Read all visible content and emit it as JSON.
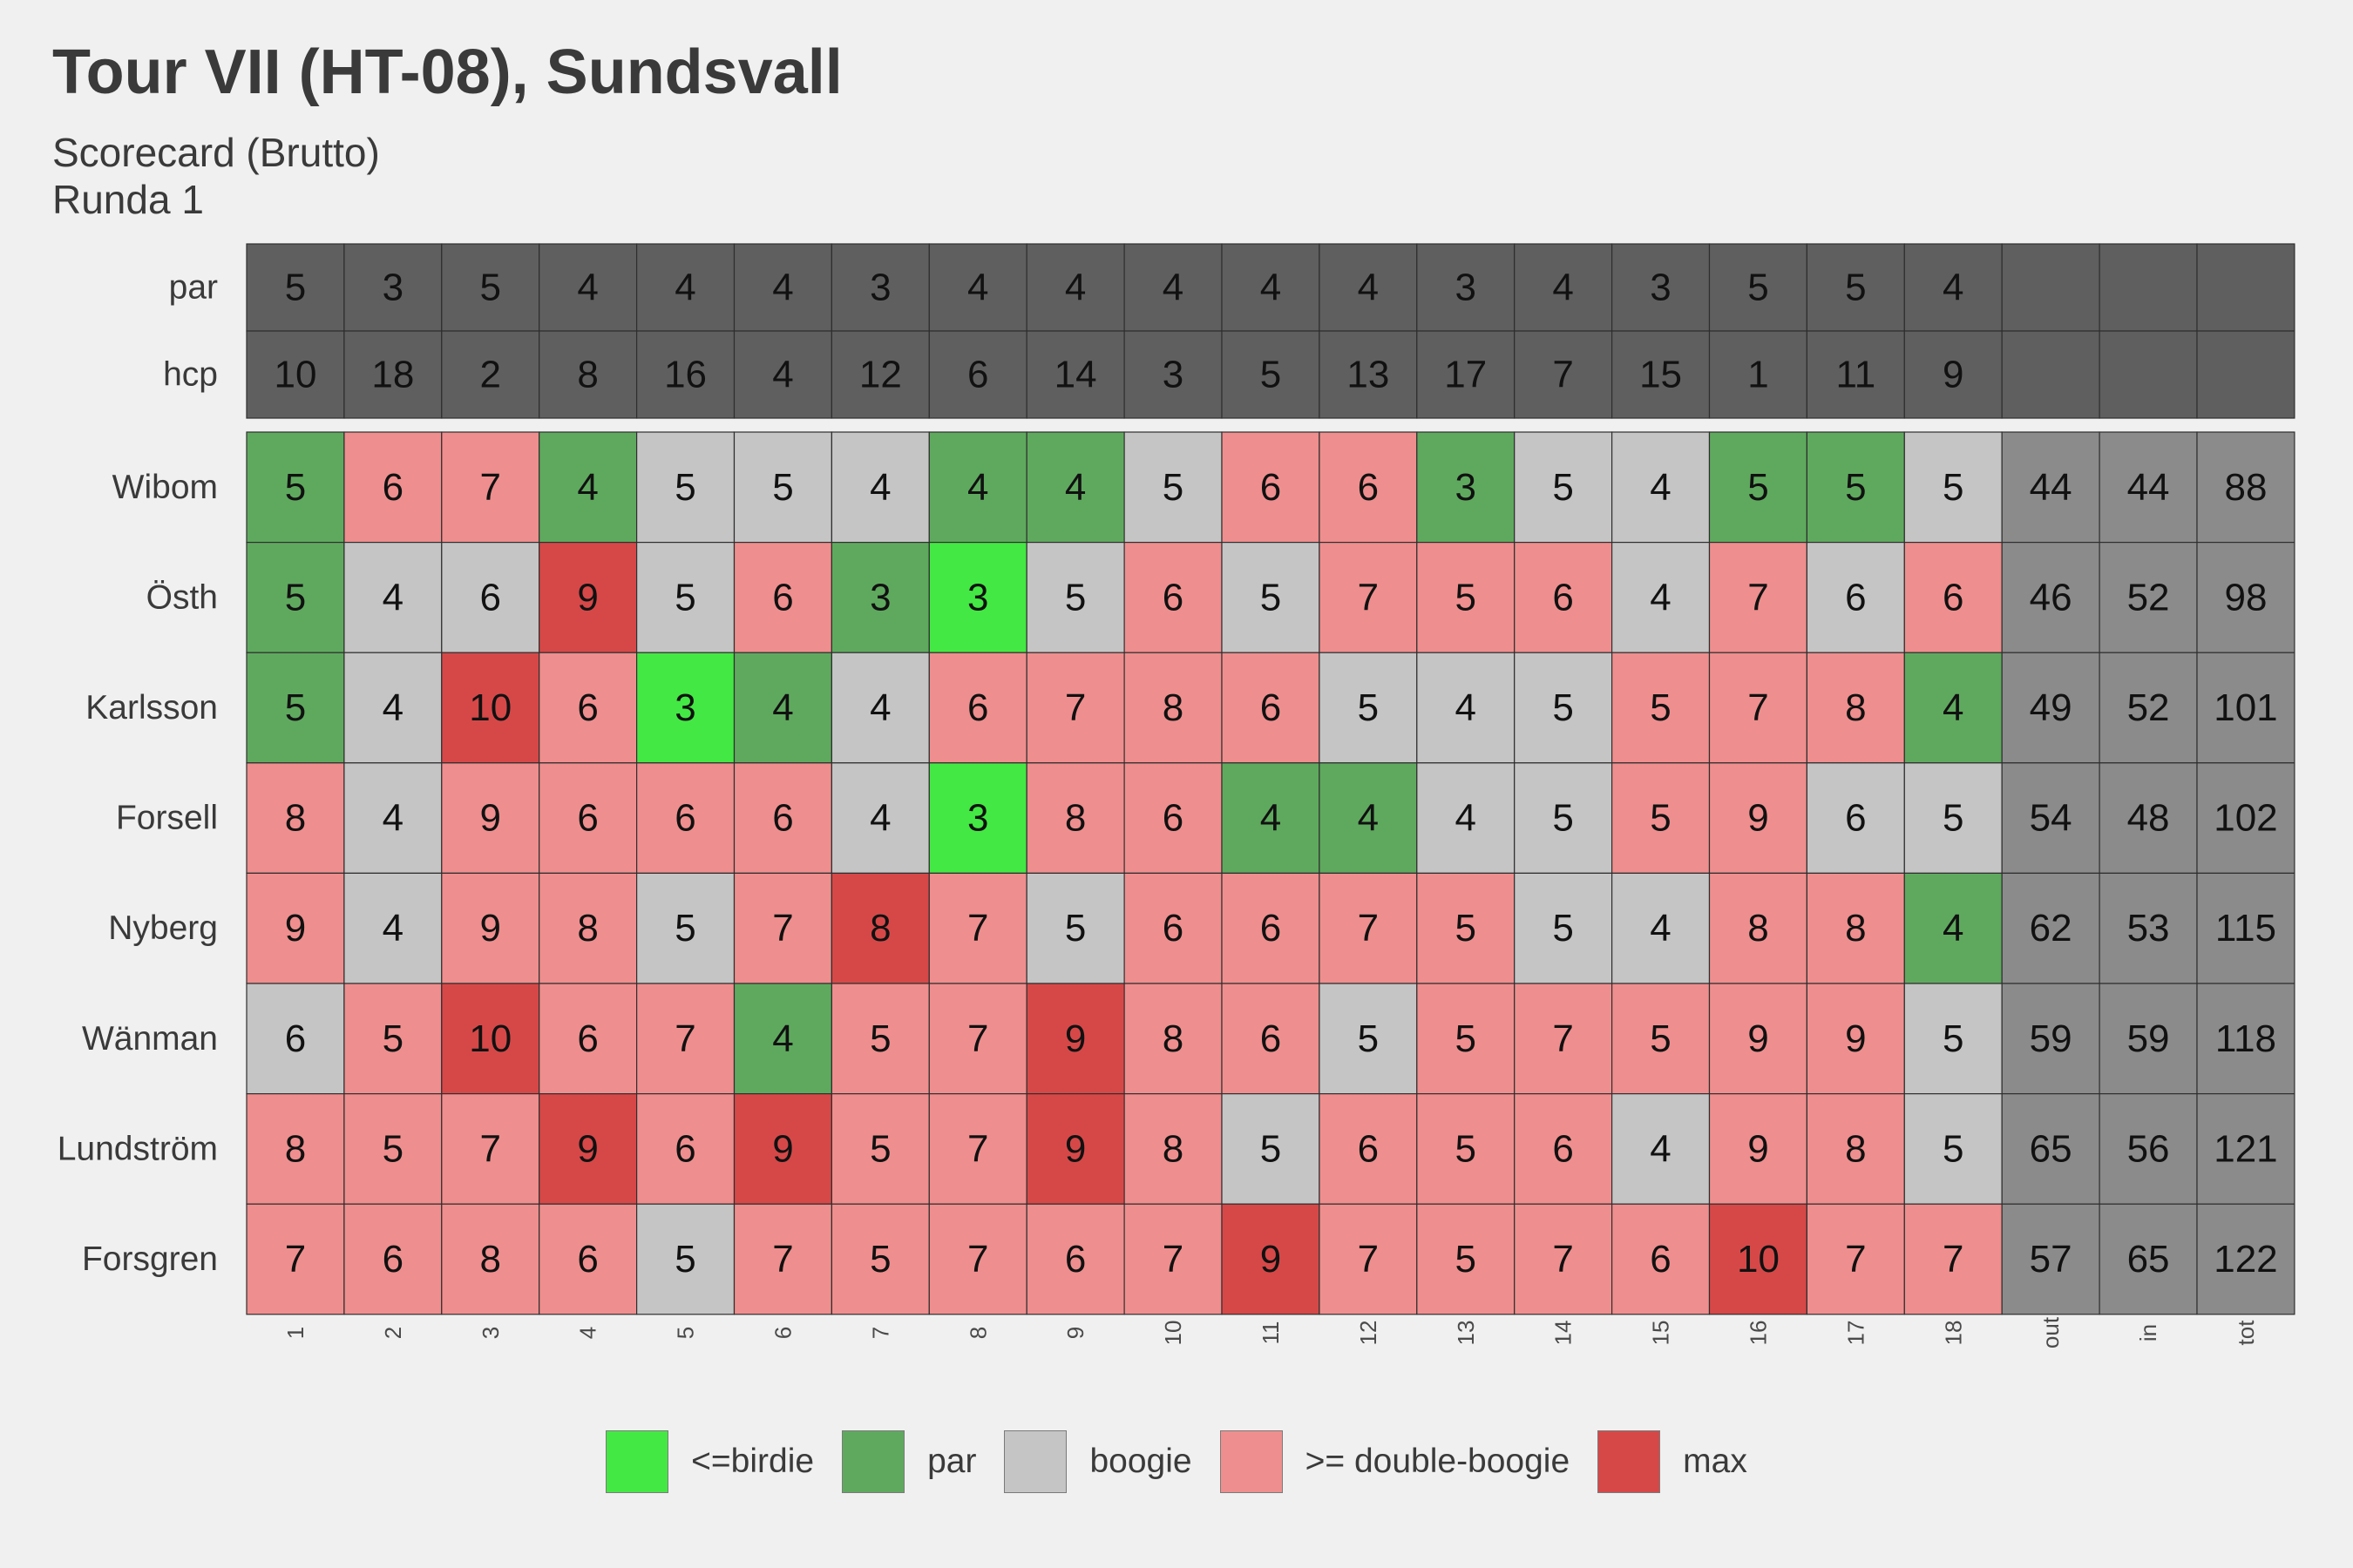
{
  "title": "Tour VII (HT-08), Sundsvall",
  "subtitle_line1": "Scorecard (Brutto)",
  "subtitle_line2": "Runda 1",
  "colors": {
    "background": "#f0f0f0",
    "header": "#5f5f5f",
    "totals": "#8b8b8b",
    "birdie": "#44e844",
    "par": "#5fa95f",
    "bogie": "#c5c5c5",
    "double_bogie": "#ef8e8e",
    "max": "#d64848"
  },
  "chart_data": {
    "type": "heatmap",
    "title": "Tour VII (HT-08), Sundsvall",
    "subtitle": "Scorecard (Brutto) Runda 1",
    "columns": [
      "1",
      "2",
      "3",
      "4",
      "5",
      "6",
      "7",
      "8",
      "9",
      "10",
      "11",
      "12",
      "13",
      "14",
      "15",
      "16",
      "17",
      "18",
      "out",
      "in",
      "tot"
    ],
    "header_rows": [
      {
        "label": "par",
        "values": [
          5,
          3,
          5,
          4,
          4,
          4,
          3,
          4,
          4,
          4,
          4,
          4,
          3,
          4,
          3,
          5,
          5,
          4,
          "",
          "",
          ""
        ]
      },
      {
        "label": "hcp",
        "values": [
          10,
          18,
          2,
          8,
          16,
          4,
          12,
          6,
          14,
          3,
          5,
          13,
          17,
          7,
          15,
          1,
          11,
          9,
          "",
          "",
          ""
        ]
      }
    ],
    "players": [
      {
        "name": "Wibom",
        "scores": [
          5,
          6,
          7,
          4,
          5,
          5,
          4,
          4,
          4,
          5,
          6,
          6,
          3,
          5,
          4,
          5,
          5,
          5
        ],
        "out": 44,
        "in": 44,
        "tot": 88
      },
      {
        "name": "Östh",
        "scores": [
          5,
          4,
          6,
          9,
          5,
          6,
          3,
          3,
          5,
          6,
          5,
          7,
          5,
          6,
          4,
          7,
          6,
          6
        ],
        "out": 46,
        "in": 52,
        "tot": 98
      },
      {
        "name": "Karlsson",
        "scores": [
          5,
          4,
          10,
          6,
          3,
          4,
          4,
          6,
          7,
          8,
          6,
          5,
          4,
          5,
          5,
          7,
          8,
          4
        ],
        "out": 49,
        "in": 52,
        "tot": 101
      },
      {
        "name": "Forsell",
        "scores": [
          8,
          4,
          9,
          6,
          6,
          6,
          4,
          3,
          8,
          6,
          4,
          4,
          4,
          5,
          5,
          9,
          6,
          5
        ],
        "out": 54,
        "in": 48,
        "tot": 102
      },
      {
        "name": "Nyberg",
        "scores": [
          9,
          4,
          9,
          8,
          5,
          7,
          8,
          7,
          5,
          6,
          6,
          7,
          5,
          5,
          4,
          8,
          8,
          4
        ],
        "out": 62,
        "in": 53,
        "tot": 115
      },
      {
        "name": "Wänman",
        "scores": [
          6,
          5,
          10,
          6,
          7,
          4,
          5,
          7,
          9,
          8,
          6,
          5,
          5,
          7,
          5,
          9,
          9,
          5
        ],
        "out": 59,
        "in": 59,
        "tot": 118
      },
      {
        "name": "Lundström",
        "scores": [
          8,
          5,
          7,
          9,
          6,
          9,
          5,
          7,
          9,
          8,
          5,
          6,
          5,
          6,
          4,
          9,
          8,
          5
        ],
        "out": 65,
        "in": 56,
        "tot": 121
      },
      {
        "name": "Forsgren",
        "scores": [
          7,
          6,
          8,
          6,
          5,
          7,
          5,
          7,
          6,
          7,
          9,
          7,
          5,
          7,
          6,
          10,
          7,
          7
        ],
        "out": 57,
        "in": 65,
        "tot": 122
      }
    ],
    "categories_grid": [
      [
        "par",
        "double_bogie",
        "double_bogie",
        "par",
        "bogie",
        "bogie",
        "bogie",
        "par",
        "par",
        "bogie",
        "double_bogie",
        "double_bogie",
        "par",
        "bogie",
        "bogie",
        "par",
        "par",
        "bogie"
      ],
      [
        "par",
        "bogie",
        "bogie",
        "max",
        "bogie",
        "double_bogie",
        "par",
        "birdie",
        "bogie",
        "double_bogie",
        "bogie",
        "double_bogie",
        "double_bogie",
        "double_bogie",
        "bogie",
        "double_bogie",
        "bogie",
        "double_bogie"
      ],
      [
        "par",
        "bogie",
        "max",
        "double_bogie",
        "birdie",
        "par",
        "bogie",
        "double_bogie",
        "double_bogie",
        "double_bogie",
        "double_bogie",
        "bogie",
        "bogie",
        "bogie",
        "double_bogie",
        "double_bogie",
        "double_bogie",
        "par"
      ],
      [
        "double_bogie",
        "bogie",
        "double_bogie",
        "double_bogie",
        "double_bogie",
        "double_bogie",
        "bogie",
        "birdie",
        "double_bogie",
        "double_bogie",
        "par",
        "par",
        "bogie",
        "bogie",
        "double_bogie",
        "double_bogie",
        "bogie",
        "bogie"
      ],
      [
        "double_bogie",
        "bogie",
        "double_bogie",
        "double_bogie",
        "bogie",
        "double_bogie",
        "max",
        "double_bogie",
        "bogie",
        "double_bogie",
        "double_bogie",
        "double_bogie",
        "double_bogie",
        "bogie",
        "bogie",
        "double_bogie",
        "double_bogie",
        "par"
      ],
      [
        "bogie",
        "double_bogie",
        "max",
        "double_bogie",
        "double_bogie",
        "par",
        "double_bogie",
        "double_bogie",
        "max",
        "double_bogie",
        "double_bogie",
        "bogie",
        "double_bogie",
        "double_bogie",
        "double_bogie",
        "double_bogie",
        "double_bogie",
        "bogie"
      ],
      [
        "double_bogie",
        "double_bogie",
        "double_bogie",
        "max",
        "double_bogie",
        "max",
        "double_bogie",
        "double_bogie",
        "max",
        "double_bogie",
        "bogie",
        "double_bogie",
        "double_bogie",
        "double_bogie",
        "bogie",
        "double_bogie",
        "double_bogie",
        "bogie"
      ],
      [
        "double_bogie",
        "double_bogie",
        "double_bogie",
        "double_bogie",
        "bogie",
        "double_bogie",
        "double_bogie",
        "double_bogie",
        "double_bogie",
        "double_bogie",
        "max",
        "double_bogie",
        "double_bogie",
        "double_bogie",
        "double_bogie",
        "max",
        "double_bogie",
        "double_bogie"
      ]
    ],
    "legend": [
      {
        "key": "birdie",
        "label": "<=birdie"
      },
      {
        "key": "par",
        "label": "par"
      },
      {
        "key": "bogie",
        "label": "boogie"
      },
      {
        "key": "double_bogie",
        "label": ">= double-boogie"
      },
      {
        "key": "max",
        "label": "max"
      }
    ],
    "legend_position": "bottom"
  }
}
